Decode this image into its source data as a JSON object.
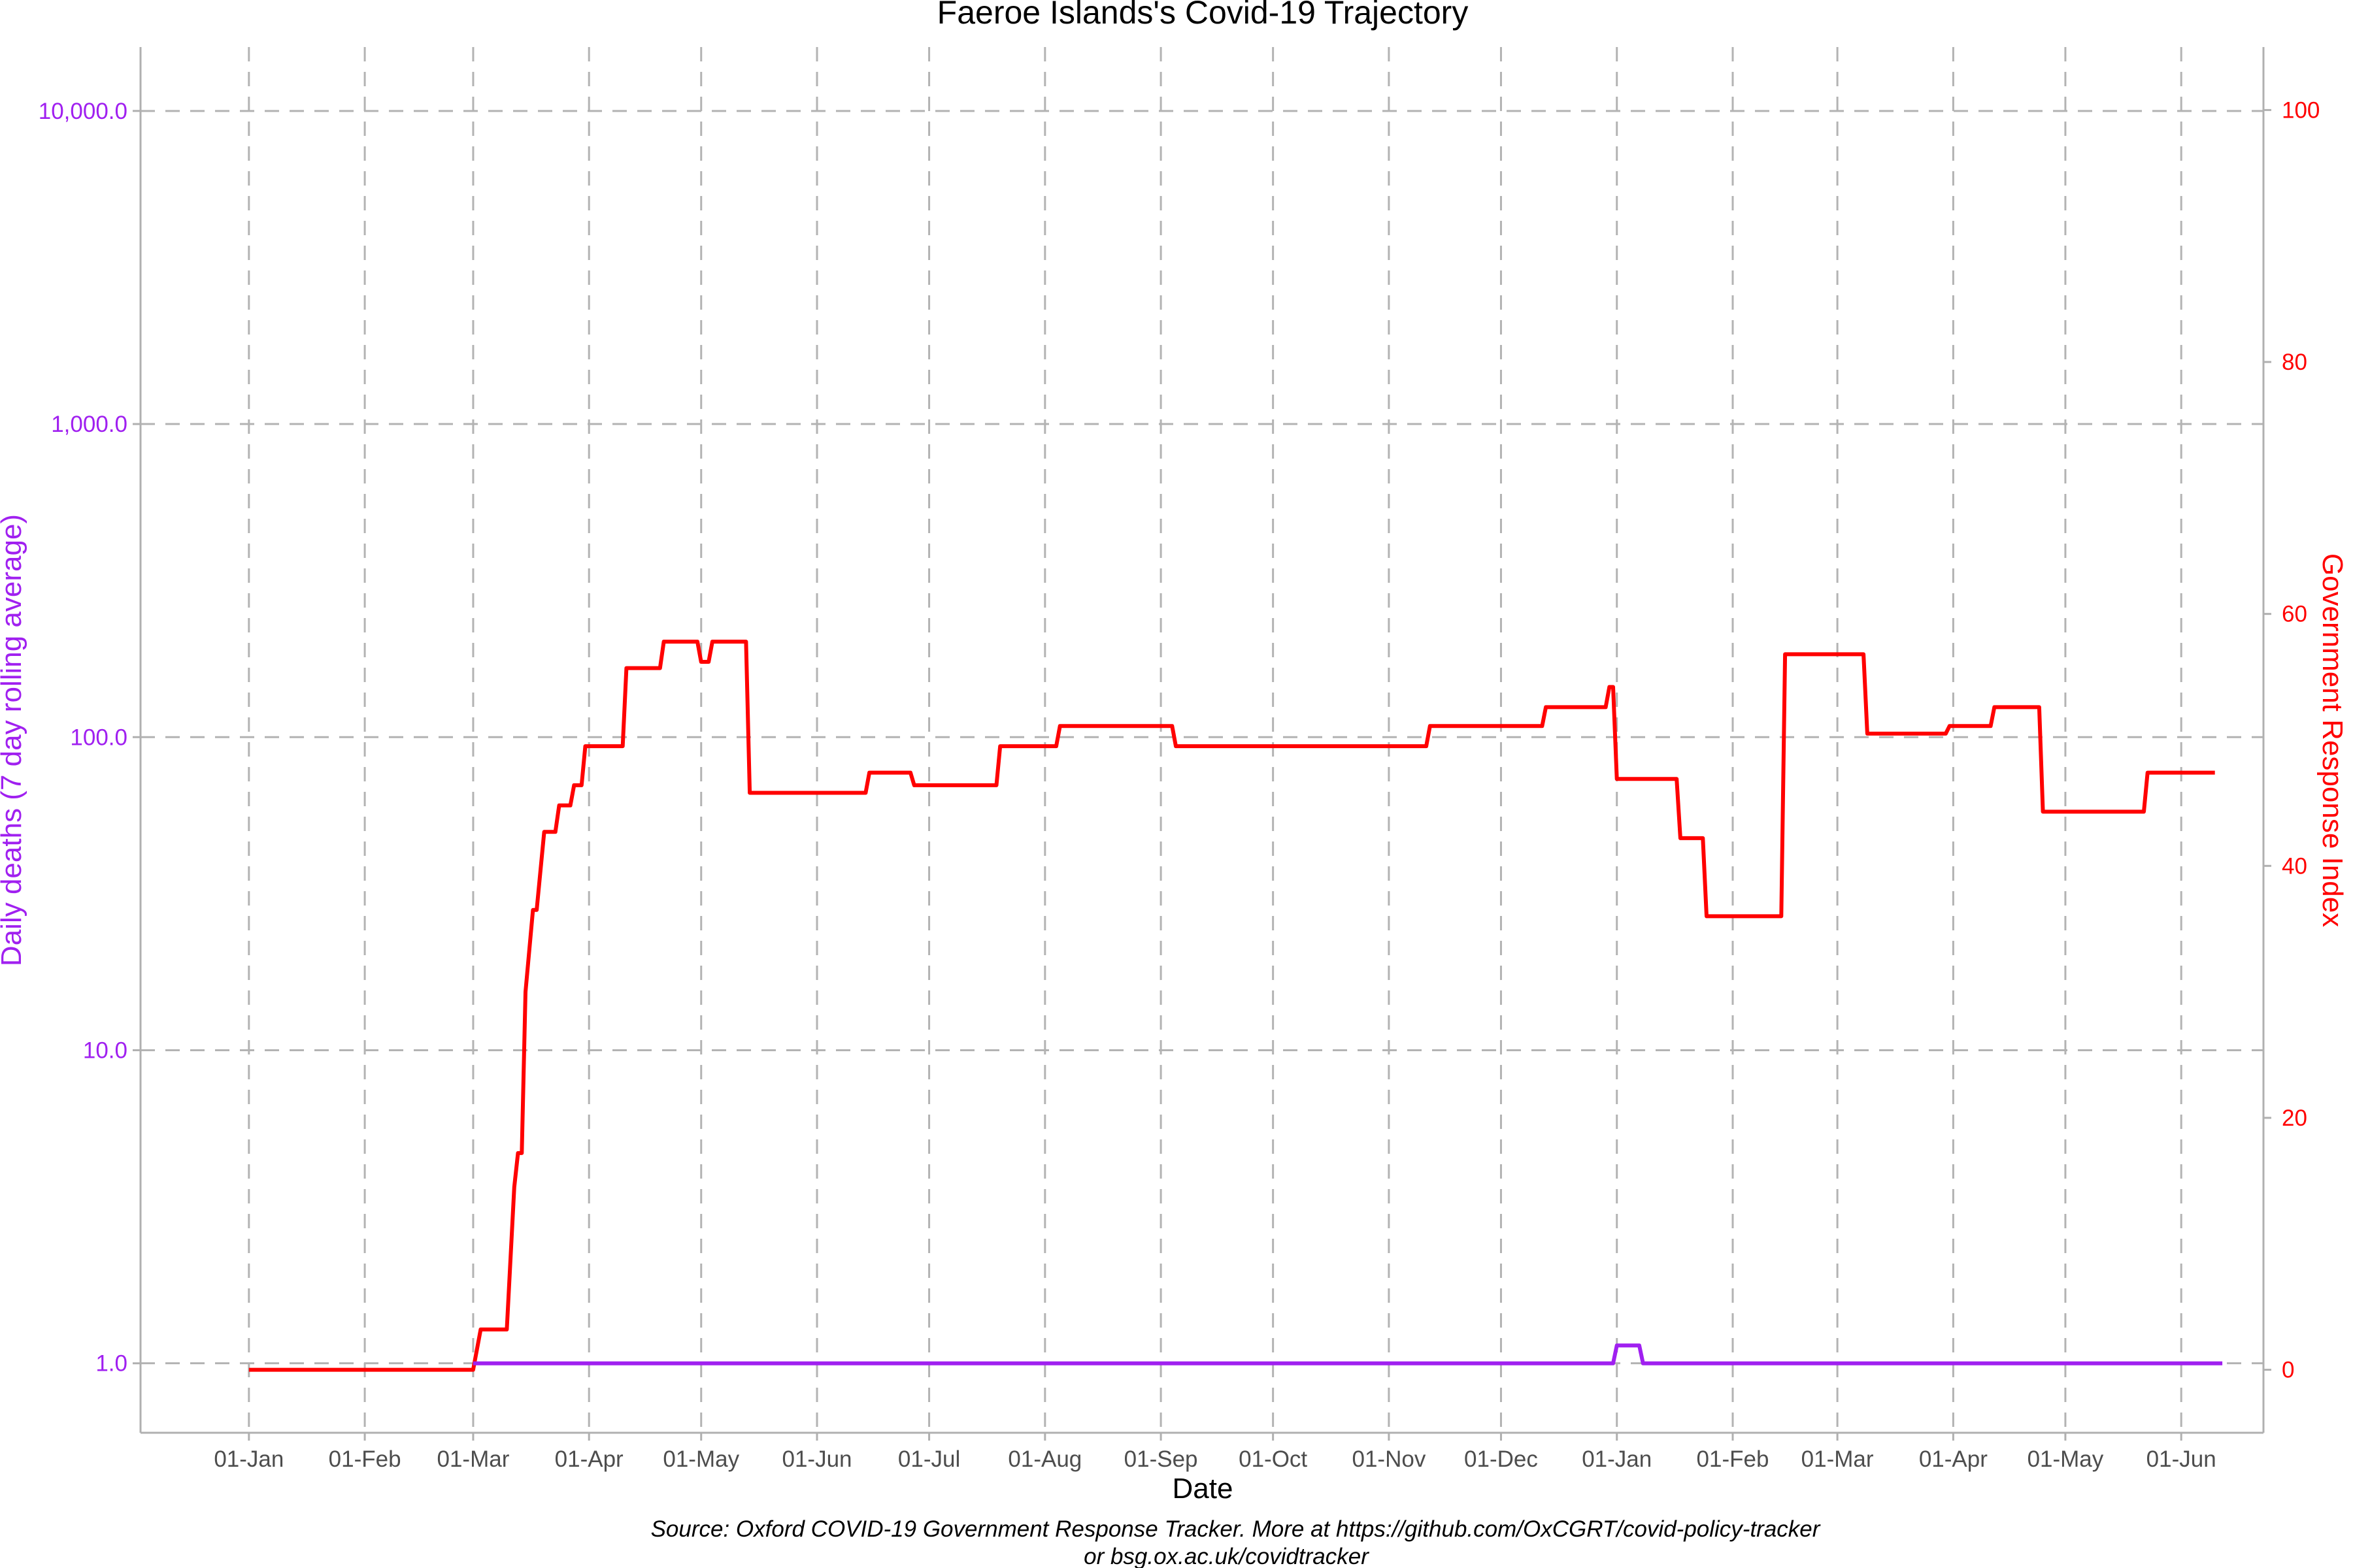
{
  "chart_data": {
    "type": "line",
    "title": "Faeroe Islands's Covid-19 Trajectory",
    "xlabel": "Date",
    "ylabel_left": "Daily deaths (7 day rolling average)",
    "ylabel_right": "Government Response Index",
    "caption_lines": [
      "Source: Oxford COVID-19 Government Response Tracker. More at https://github.com/OxCGRT/covid-policy-tracker",
      "or bsg.ox.ac.uk/covidtracker"
    ],
    "x_range": [
      "2019-12-03",
      "2021-06-23"
    ],
    "x_ticks": [
      {
        "date": "2020-01-01",
        "label": "01-Jan"
      },
      {
        "date": "2020-02-01",
        "label": "01-Feb"
      },
      {
        "date": "2020-03-01",
        "label": "01-Mar"
      },
      {
        "date": "2020-04-01",
        "label": "01-Apr"
      },
      {
        "date": "2020-05-01",
        "label": "01-May"
      },
      {
        "date": "2020-06-01",
        "label": "01-Jun"
      },
      {
        "date": "2020-07-01",
        "label": "01-Jul"
      },
      {
        "date": "2020-08-01",
        "label": "01-Aug"
      },
      {
        "date": "2020-09-01",
        "label": "01-Sep"
      },
      {
        "date": "2020-10-01",
        "label": "01-Oct"
      },
      {
        "date": "2020-11-01",
        "label": "01-Nov"
      },
      {
        "date": "2020-12-01",
        "label": "01-Dec"
      },
      {
        "date": "2021-01-01",
        "label": "01-Jan"
      },
      {
        "date": "2021-02-01",
        "label": "01-Feb"
      },
      {
        "date": "2021-03-01",
        "label": "01-Mar"
      },
      {
        "date": "2021-04-01",
        "label": "01-Apr"
      },
      {
        "date": "2021-05-01",
        "label": "01-May"
      },
      {
        "date": "2021-06-01",
        "label": "01-Jun"
      }
    ],
    "y_left": {
      "scale": "log10",
      "range": [
        0.6,
        16000
      ],
      "ticks": [
        {
          "value": 1,
          "label": "1.0"
        },
        {
          "value": 10,
          "label": "10.0"
        },
        {
          "value": 100,
          "label": "100.0"
        },
        {
          "value": 1000,
          "label": "1,000.0"
        },
        {
          "value": 10000,
          "label": "10,000.0"
        }
      ]
    },
    "y_right": {
      "scale": "linear",
      "range": [
        -5,
        105
      ],
      "ticks": [
        {
          "value": 0,
          "label": "0"
        },
        {
          "value": 20,
          "label": "20"
        },
        {
          "value": 40,
          "label": "40"
        },
        {
          "value": 60,
          "label": "60"
        },
        {
          "value": 80,
          "label": "80"
        },
        {
          "value": 100,
          "label": "100"
        }
      ]
    },
    "grid": true,
    "legend": "none",
    "series": [
      {
        "axis": "right",
        "color": "#ff0000",
        "x": [
          "2020-01-01",
          "2020-03-01",
          "2020-03-03",
          "2020-03-10",
          "2020-03-12",
          "2020-03-13",
          "2020-03-14",
          "2020-03-15",
          "2020-03-17",
          "2020-03-18",
          "2020-03-20",
          "2020-03-23",
          "2020-03-24",
          "2020-03-27",
          "2020-03-28",
          "2020-03-30",
          "2020-03-31",
          "2020-04-10",
          "2020-04-11",
          "2020-04-20",
          "2020-04-21",
          "2020-04-30",
          "2020-05-01",
          "2020-05-03",
          "2020-05-04",
          "2020-05-13",
          "2020-05-14",
          "2020-06-14",
          "2020-06-15",
          "2020-06-26",
          "2020-06-27",
          "2020-07-19",
          "2020-07-20",
          "2020-08-04",
          "2020-08-05",
          "2020-09-04",
          "2020-09-05",
          "2020-11-11",
          "2020-11-12",
          "2020-12-12",
          "2020-12-13",
          "2020-12-29",
          "2020-12-30",
          "2020-12-31",
          "2021-01-01",
          "2021-01-17",
          "2021-01-18",
          "2021-01-24",
          "2021-01-25",
          "2021-02-14",
          "2021-02-15",
          "2021-03-08",
          "2021-03-09",
          "2021-03-30",
          "2021-03-31",
          "2021-04-11",
          "2021-04-12",
          "2021-04-24",
          "2021-04-25",
          "2021-05-22",
          "2021-05-23",
          "2021-06-10"
        ],
        "y": [
          0,
          0,
          3.2,
          3.2,
          14.5,
          17.2,
          17.2,
          30,
          36.5,
          36.5,
          42.7,
          42.7,
          44.8,
          44.8,
          46.4,
          46.4,
          49.5,
          49.5,
          55.7,
          55.7,
          57.8,
          57.8,
          56.2,
          56.2,
          57.8,
          57.8,
          45.8,
          45.8,
          47.4,
          47.4,
          46.4,
          46.4,
          49.5,
          49.5,
          51.1,
          51.1,
          49.5,
          49.5,
          51.1,
          51.1,
          52.6,
          52.6,
          54.2,
          54.2,
          46.9,
          46.9,
          42.2,
          42.2,
          36.0,
          36.0,
          56.8,
          56.8,
          50.5,
          50.5,
          51.1,
          51.1,
          52.6,
          52.6,
          44.3,
          44.3,
          47.4,
          47.4
        ]
      },
      {
        "axis": "left",
        "color": "#a020f0",
        "x": [
          "2020-03-01",
          "2020-12-31",
          "2021-01-01",
          "2021-01-07",
          "2021-01-08",
          "2021-06-12"
        ],
        "y": [
          1,
          1,
          1.14,
          1.14,
          1,
          1
        ]
      }
    ]
  }
}
